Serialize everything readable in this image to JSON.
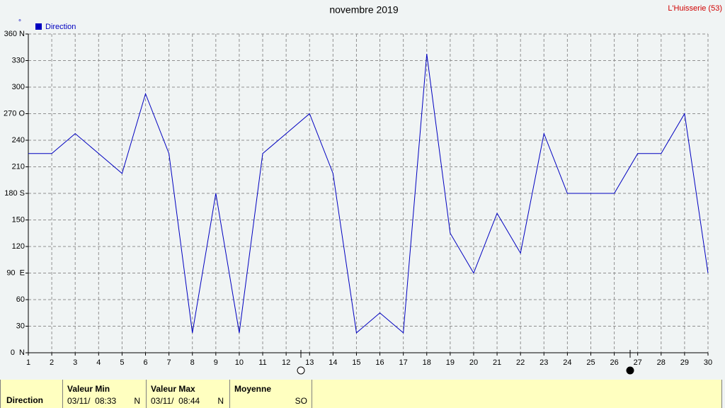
{
  "chart_data": {
    "type": "line",
    "title": "novembre 2019",
    "station": "L'Huisserie (53)",
    "unit": "°",
    "x": [
      1,
      2,
      3,
      4,
      5,
      6,
      7,
      8,
      9,
      10,
      11,
      12,
      13,
      14,
      15,
      16,
      17,
      18,
      19,
      20,
      21,
      22,
      23,
      24,
      25,
      26,
      27,
      28,
      29,
      30
    ],
    "xlim": [
      1,
      30
    ],
    "xticks": [
      1,
      2,
      3,
      4,
      5,
      6,
      7,
      8,
      9,
      10,
      11,
      12,
      13,
      14,
      15,
      16,
      17,
      18,
      19,
      20,
      21,
      22,
      23,
      24,
      25,
      26,
      27,
      28,
      29,
      30
    ],
    "series": [
      {
        "name": "Direction",
        "color": "#0000c0",
        "values": [
          225,
          225,
          247.5,
          225,
          202.5,
          292.5,
          225,
          22.5,
          180,
          22.5,
          225,
          247.5,
          270,
          202.5,
          22.5,
          45,
          22.5,
          337.5,
          135,
          90,
          157.5,
          112.5,
          247.5,
          180,
          180,
          180,
          225,
          225,
          270,
          90
        ]
      }
    ],
    "ylim": [
      0,
      360
    ],
    "yticks": [
      {
        "value": 0,
        "label": "0  N"
      },
      30,
      60,
      {
        "value": 90,
        "label": "90  E"
      },
      120,
      150,
      {
        "value": 180,
        "label": "180 S"
      },
      210,
      240,
      {
        "value": 270,
        "label": "270 O"
      },
      300,
      330,
      {
        "value": 360,
        "label": "360 N"
      }
    ],
    "grid": true
  },
  "summary": {
    "label": "Direction",
    "min": {
      "title": "Valeur Min",
      "date": "03/11/  08:33",
      "dir": "N"
    },
    "max": {
      "title": "Valeur Max",
      "date": "03/11/  08:44",
      "dir": "N"
    },
    "mean": {
      "title": "Moyenne",
      "dir": "SO"
    }
  }
}
